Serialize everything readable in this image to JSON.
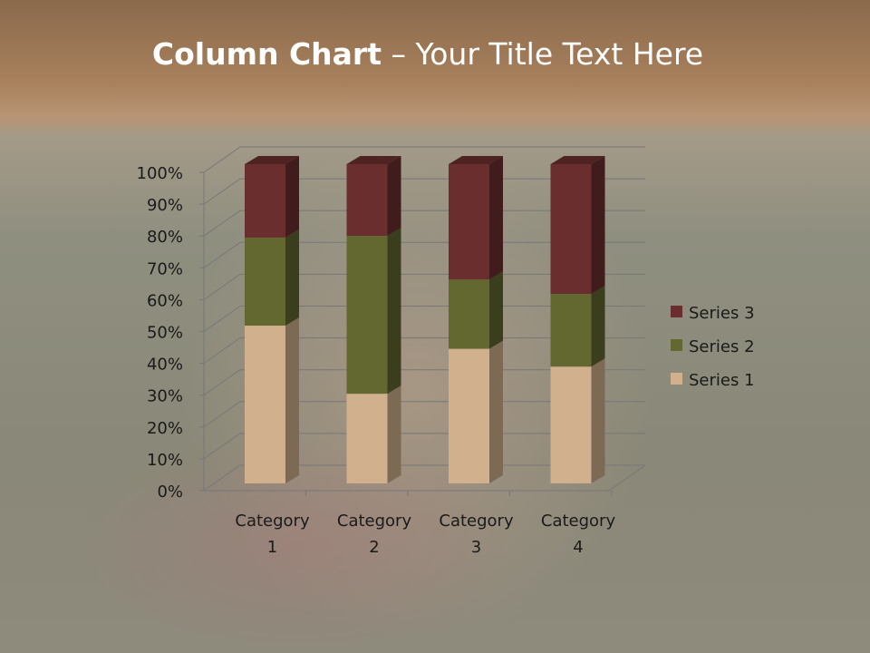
{
  "slide": {
    "title_bold": "Column Chart",
    "title_rest": " – Your Title Text Here"
  },
  "chart_data": {
    "type": "bar",
    "stacking": "percent",
    "style": "3d-column",
    "categories": [
      [
        "Category",
        "1"
      ],
      [
        "Category",
        "2"
      ],
      [
        "Category",
        "3"
      ],
      [
        "Category",
        "4"
      ]
    ],
    "series": [
      {
        "name": "Series 1",
        "values": [
          4.3,
          2.5,
          3.5,
          4.5
        ],
        "color": "#d1b08e"
      },
      {
        "name": "Series 2",
        "values": [
          2.4,
          4.4,
          1.8,
          2.8
        ],
        "color": "#636830"
      },
      {
        "name": "Series 3",
        "values": [
          2,
          2,
          3,
          5
        ],
        "color": "#6a2e2e"
      }
    ],
    "yticks": [
      "0%",
      "10%",
      "20%",
      "30%",
      "40%",
      "50%",
      "60%",
      "70%",
      "80%",
      "90%",
      "100%"
    ],
    "ylim": [
      0,
      100
    ],
    "grid": true,
    "legend": "right"
  }
}
